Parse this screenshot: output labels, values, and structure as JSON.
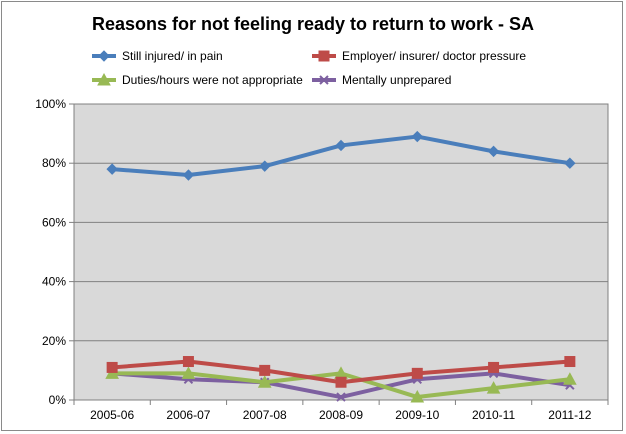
{
  "chart_data": {
    "type": "line",
    "title": "Reasons for not feeling ready to return to work - SA",
    "categories": [
      "2005-06",
      "2006-07",
      "2007-08",
      "2008-09",
      "2009-10",
      "2010-11",
      "2011-12"
    ],
    "y_ticks": [
      "0%",
      "20%",
      "40%",
      "60%",
      "80%",
      "100%"
    ],
    "ylim": [
      0,
      100
    ],
    "y_unit": "percent",
    "grid": true,
    "plot_background": "#d9d9d9",
    "legend_position": "top",
    "series": [
      {
        "name": "Still injured/ in pain",
        "color": "#4a7ebb",
        "marker": "diamond",
        "values": [
          78,
          76,
          79,
          86,
          89,
          84,
          80
        ]
      },
      {
        "name": "Employer/ insurer/ doctor pressure",
        "color": "#be4b48",
        "marker": "square",
        "values": [
          11,
          13,
          10,
          6,
          9,
          11,
          13
        ]
      },
      {
        "name": "Duties/hours were not appropriate",
        "color": "#98b954",
        "marker": "triangle",
        "values": [
          9,
          9,
          6,
          9,
          1,
          4,
          7
        ]
      },
      {
        "name": "Mentally unprepared",
        "color": "#7d60a0",
        "marker": "x",
        "values": [
          9,
          7,
          6,
          1,
          7,
          9,
          5
        ]
      }
    ]
  }
}
